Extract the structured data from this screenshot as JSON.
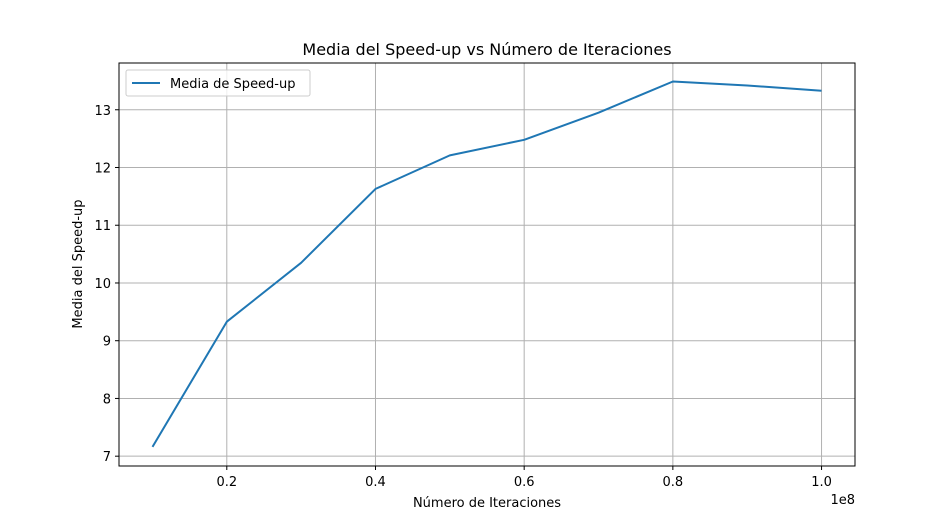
{
  "chart_data": {
    "type": "line",
    "title": "Media del Speed-up vs Número de Iteraciones",
    "xlabel": "Número de Iteraciones",
    "ylabel": "Media del Speed-up",
    "x_offset_label": "1e8",
    "x_scale_factor": 100000000,
    "xlim": [
      5500000,
      104500000
    ],
    "ylim": [
      6.83,
      13.81
    ],
    "x_ticks": [
      20000000,
      40000000,
      60000000,
      80000000,
      100000000
    ],
    "x_tick_labels": [
      "0.2",
      "0.4",
      "0.6",
      "0.8",
      "1.0"
    ],
    "y_ticks": [
      7,
      8,
      9,
      10,
      11,
      12,
      13
    ],
    "y_tick_labels": [
      "7",
      "8",
      "9",
      "10",
      "11",
      "12",
      "13"
    ],
    "grid": true,
    "legend_position": "upper-left",
    "series": [
      {
        "name": "Media de Speed-up",
        "color": "#1f77b4",
        "x": [
          10000000,
          20000000,
          30000000,
          40000000,
          50000000,
          60000000,
          70000000,
          80000000,
          90000000,
          100000000
        ],
        "y": [
          7.16,
          9.33,
          10.35,
          11.63,
          12.21,
          12.48,
          12.95,
          13.49,
          13.42,
          13.33
        ]
      }
    ]
  }
}
